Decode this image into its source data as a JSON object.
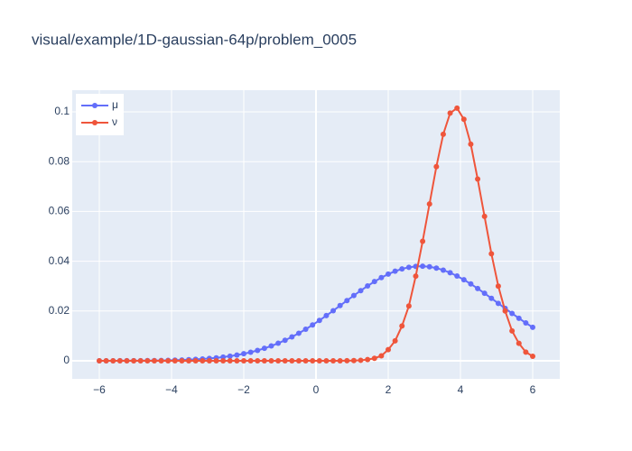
{
  "chart_data": {
    "type": "line",
    "title": "visual/example/1D-gaussian-64p/problem_0005",
    "x": [
      -6,
      -5.8095,
      -5.619,
      -5.4286,
      -5.2381,
      -5.0476,
      -4.8571,
      -4.6667,
      -4.4762,
      -4.2857,
      -4.0952,
      -3.9048,
      -3.7143,
      -3.5238,
      -3.3333,
      -3.1429,
      -2.9524,
      -2.7619,
      -2.5714,
      -2.381,
      -2.1905,
      -2,
      -1.8095,
      -1.619,
      -1.4286,
      -1.2381,
      -1.0476,
      -0.8571,
      -0.6667,
      -0.4762,
      -0.2857,
      -0.0952,
      0.0952,
      0.2857,
      0.4762,
      0.6667,
      0.8571,
      1.0476,
      1.2381,
      1.4286,
      1.619,
      1.8095,
      2,
      2.1905,
      2.381,
      2.5714,
      2.7619,
      2.9524,
      3.1429,
      3.3333,
      3.5238,
      3.7143,
      3.9048,
      4.0952,
      4.2857,
      4.4762,
      4.6667,
      4.8571,
      5.0476,
      5.2381,
      5.4286,
      5.619,
      5.8095,
      6
    ],
    "series": [
      {
        "name": "μ",
        "color": "#636efa",
        "values": [
          7.2e-06,
          1.04e-05,
          1.48e-05,
          2.09e-05,
          2.94e-05,
          4.1e-05,
          5.66e-05,
          7.75e-05,
          0.0001056,
          0.000143,
          0.000191,
          0.000254,
          0.000335,
          0.000438,
          0.000569,
          0.000732,
          0.000936,
          0.001185,
          0.001492,
          0.00186,
          0.002305,
          0.00283,
          0.00345,
          0.00417,
          0.00501,
          0.00596,
          0.00704,
          0.00825,
          0.0096,
          0.01107,
          0.01267,
          0.0144,
          0.01623,
          0.01815,
          0.02012,
          0.02217,
          0.0242,
          0.02622,
          0.02818,
          0.03007,
          0.03182,
          0.03342,
          0.03481,
          0.03599,
          0.03691,
          0.03756,
          0.03792,
          0.03799,
          0.03776,
          0.03724,
          0.03643,
          0.03537,
          0.03407,
          0.03256,
          0.03087,
          0.02905,
          0.02711,
          0.02511,
          0.02307,
          0.02104,
          0.01903,
          0.01708,
          0.0152,
          0.01344
        ]
      },
      {
        "name": "ν",
        "color": "#EF553B",
        "values": [
          0,
          0,
          0,
          0,
          0,
          0,
          0,
          0,
          0,
          0,
          0,
          0,
          0,
          0,
          0,
          0,
          0,
          0,
          0,
          0,
          0,
          0,
          0,
          0,
          0,
          0,
          0,
          0,
          0,
          0,
          0,
          1e-07,
          2e-07,
          5e-07,
          1e-06,
          3e-06,
          4e-05,
          0.0001,
          0.0002,
          0.0005,
          0.001,
          0.002,
          0.0045,
          0.008,
          0.014,
          0.022,
          0.034,
          0.048,
          0.063,
          0.078,
          0.091,
          0.0995,
          0.1015,
          0.097,
          0.087,
          0.073,
          0.058,
          0.043,
          0.03,
          0.02,
          0.012,
          0.007,
          0.0035,
          0.0018
        ]
      }
    ],
    "xlim": [
      -6.75,
      6.75
    ],
    "xticks": [
      {
        "value": -6,
        "label": "−6"
      },
      {
        "value": -4,
        "label": "−4"
      },
      {
        "value": -2,
        "label": "−2"
      },
      0,
      2,
      4,
      6
    ],
    "ylim": [
      -0.00725,
      0.1087
    ],
    "yticks": [
      0,
      0.02,
      0.04,
      0.06,
      0.08,
      0.1
    ],
    "grid": true,
    "legend": "top-left"
  }
}
